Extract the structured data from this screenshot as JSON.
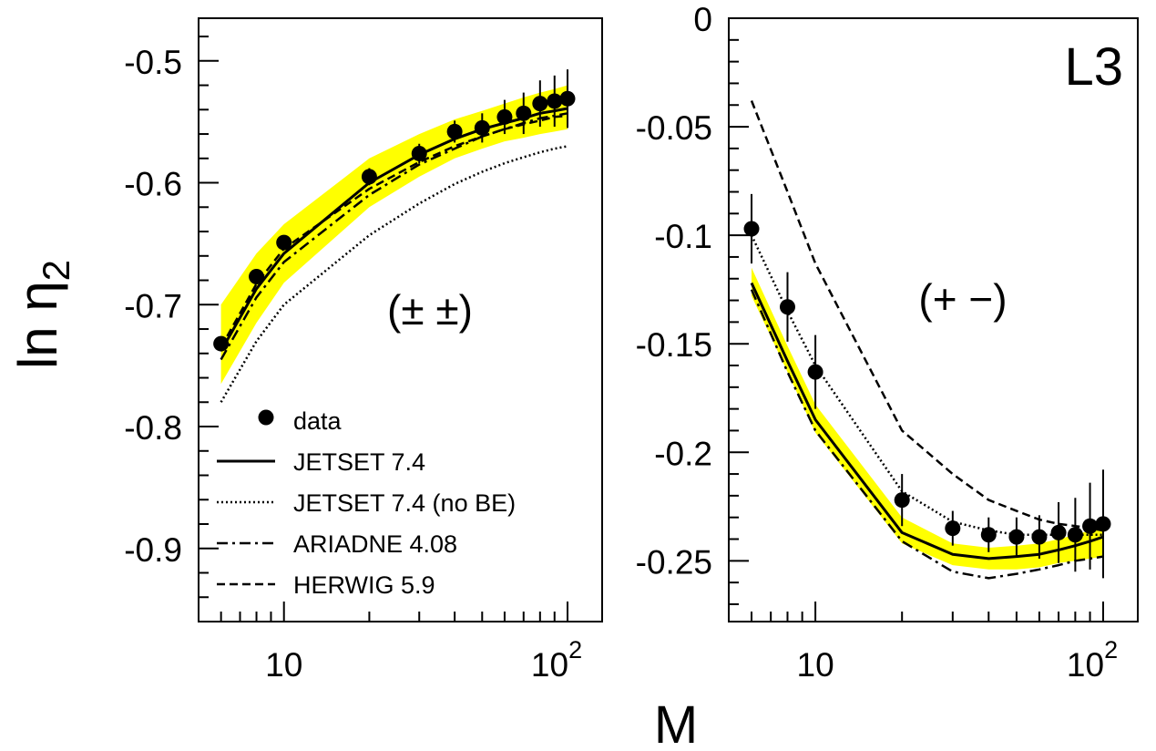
{
  "figure": {
    "experiment_label": "L3",
    "ylabel_main": "ln η",
    "ylabel_sub": "2",
    "xlabel": "M",
    "x_tick_labels": {
      "ten": "10",
      "hundred_base": "10",
      "hundred_exp": "2"
    }
  },
  "legend": {
    "entries": [
      {
        "key": "data",
        "label": "data",
        "marker": "filled-circle"
      },
      {
        "key": "jetset",
        "label": "JETSET 7.4",
        "style": "solid"
      },
      {
        "key": "nobe",
        "label": "JETSET 7.4 (no BE)",
        "style": "dotted"
      },
      {
        "key": "ariadne",
        "label": "ARIADNE 4.08",
        "style": "dashdot"
      },
      {
        "key": "herwig",
        "label": "HERWIG 5.9",
        "style": "dashed"
      }
    ]
  },
  "colors": {
    "band": "#ffff00",
    "ink": "#000000",
    "background": "#ffffff"
  },
  "chart_data": [
    {
      "type": "line",
      "panel": "like-sign",
      "annotation": "(± ±)",
      "xscale": "log",
      "xlim": [
        5,
        100
      ],
      "ylim": [
        -0.96,
        -0.465
      ],
      "yticks": [
        -0.5,
        -0.6,
        -0.7,
        -0.8,
        -0.9
      ],
      "ytick_labels": [
        "-0.5",
        "-0.6",
        "-0.7",
        "-0.8",
        "-0.9"
      ],
      "x": [
        6,
        8,
        10,
        20,
        30,
        40,
        50,
        60,
        70,
        80,
        90,
        100
      ],
      "data": {
        "y": [
          -0.732,
          -0.677,
          -0.649,
          -0.595,
          -0.576,
          -0.558,
          -0.555,
          -0.546,
          -0.543,
          -0.535,
          -0.533,
          -0.531
        ],
        "err": [
          0.006,
          0.006,
          0.006,
          0.007,
          0.008,
          0.009,
          0.012,
          0.014,
          0.017,
          0.019,
          0.021,
          0.024
        ]
      },
      "band": {
        "x": [
          6,
          8,
          10,
          20,
          30,
          40,
          50,
          60,
          70,
          80,
          90,
          100
        ],
        "lower": [
          -0.765,
          -0.715,
          -0.682,
          -0.62,
          -0.595,
          -0.58,
          -0.572,
          -0.566,
          -0.563,
          -0.56,
          -0.558,
          -0.556
        ],
        "upper": [
          -0.7,
          -0.658,
          -0.634,
          -0.58,
          -0.56,
          -0.548,
          -0.541,
          -0.535,
          -0.53,
          -0.526,
          -0.523,
          -0.52
        ]
      },
      "series": [
        {
          "key": "jetset",
          "style": "solid",
          "x": [
            6,
            8,
            10,
            20,
            30,
            40,
            50,
            60,
            70,
            80,
            90,
            100
          ],
          "y": [
            -0.738,
            -0.687,
            -0.658,
            -0.6,
            -0.577,
            -0.564,
            -0.556,
            -0.551,
            -0.547,
            -0.543,
            -0.541,
            -0.539
          ]
        },
        {
          "key": "nobe",
          "style": "dotted",
          "x": [
            6,
            8,
            10,
            20,
            30,
            40,
            50,
            60,
            70,
            80,
            90,
            100
          ],
          "y": [
            -0.78,
            -0.73,
            -0.7,
            -0.643,
            -0.617,
            -0.601,
            -0.591,
            -0.584,
            -0.579,
            -0.575,
            -0.572,
            -0.57
          ]
        },
        {
          "key": "ariadne",
          "style": "dashdot",
          "x": [
            6,
            8,
            10,
            20,
            30,
            40,
            50,
            60,
            70,
            80,
            90,
            100
          ],
          "y": [
            -0.745,
            -0.694,
            -0.665,
            -0.61,
            -0.585,
            -0.572,
            -0.562,
            -0.556,
            -0.551,
            -0.547,
            -0.545,
            -0.543
          ]
        },
        {
          "key": "herwig",
          "style": "dashed",
          "x": [
            6,
            8,
            10,
            20,
            30,
            40,
            50,
            60,
            70,
            80,
            90,
            100
          ],
          "y": [
            -0.735,
            -0.683,
            -0.654,
            -0.605,
            -0.583,
            -0.57,
            -0.562,
            -0.556,
            -0.552,
            -0.549,
            -0.546,
            -0.545
          ]
        }
      ]
    },
    {
      "type": "line",
      "panel": "unlike-sign",
      "annotation": "(+ −)",
      "xscale": "log",
      "xlim": [
        5,
        100
      ],
      "ylim": [
        -0.278,
        0
      ],
      "yticks": [
        0,
        -0.05,
        -0.1,
        -0.15,
        -0.2,
        -0.25
      ],
      "ytick_labels": [
        "0",
        "-0.05",
        "-0.1",
        "-0.15",
        "-0.2",
        "-0.25"
      ],
      "x": [
        6,
        8,
        10,
        20,
        30,
        40,
        50,
        60,
        70,
        80,
        90,
        100
      ],
      "data": {
        "y": [
          -0.097,
          -0.133,
          -0.163,
          -0.222,
          -0.235,
          -0.238,
          -0.239,
          -0.239,
          -0.237,
          -0.238,
          -0.234,
          -0.233
        ],
        "err": [
          0.016,
          0.016,
          0.017,
          0.012,
          0.008,
          0.008,
          0.009,
          0.01,
          0.014,
          0.017,
          0.02,
          0.025
        ]
      },
      "band": {
        "x": [
          6,
          8,
          10,
          20,
          30,
          40,
          50,
          60,
          70,
          80,
          90,
          100
        ],
        "lower": [
          -0.128,
          -0.163,
          -0.191,
          -0.242,
          -0.252,
          -0.254,
          -0.254,
          -0.253,
          -0.251,
          -0.25,
          -0.249,
          -0.248
        ],
        "upper": [
          -0.115,
          -0.151,
          -0.178,
          -0.23,
          -0.242,
          -0.244,
          -0.243,
          -0.242,
          -0.24,
          -0.238,
          -0.236,
          -0.234
        ]
      },
      "series": [
        {
          "key": "jetset",
          "style": "solid",
          "x": [
            6,
            8,
            10,
            20,
            30,
            40,
            50,
            60,
            70,
            80,
            90,
            100
          ],
          "y": [
            -0.122,
            -0.158,
            -0.185,
            -0.237,
            -0.247,
            -0.249,
            -0.248,
            -0.247,
            -0.245,
            -0.243,
            -0.241,
            -0.239
          ]
        },
        {
          "key": "nobe",
          "style": "dotted",
          "x": [
            6,
            8,
            10,
            20,
            30,
            40,
            50,
            60,
            70,
            80,
            90,
            100
          ],
          "y": [
            -0.1,
            -0.135,
            -0.16,
            -0.218,
            -0.232,
            -0.236,
            -0.238,
            -0.238,
            -0.238,
            -0.238,
            -0.238,
            -0.238
          ]
        },
        {
          "key": "ariadne",
          "style": "dashdot",
          "x": [
            6,
            8,
            10,
            20,
            30,
            40,
            50,
            60,
            70,
            80,
            90,
            100
          ],
          "y": [
            -0.125,
            -0.163,
            -0.19,
            -0.241,
            -0.255,
            -0.258,
            -0.256,
            -0.254,
            -0.252,
            -0.25,
            -0.249,
            -0.248
          ]
        },
        {
          "key": "herwig",
          "style": "dashed",
          "x": [
            6,
            8,
            10,
            20,
            30,
            40,
            50,
            60,
            70,
            80,
            90,
            100
          ],
          "y": [
            -0.038,
            -0.08,
            -0.113,
            -0.19,
            -0.21,
            -0.222,
            -0.227,
            -0.231,
            -0.233,
            -0.234,
            -0.235,
            -0.236
          ]
        }
      ]
    }
  ]
}
